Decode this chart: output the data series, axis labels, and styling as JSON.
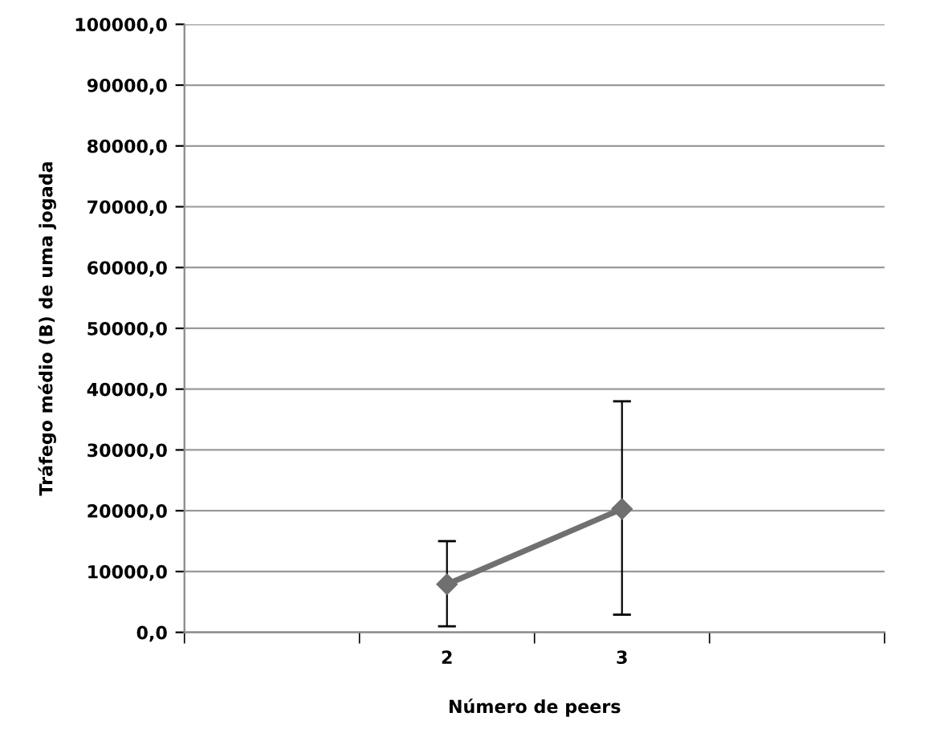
{
  "chart_data": {
    "type": "line",
    "xlabel": "Número de peers",
    "ylabel": "Tráfego médio (B) de uma jogada",
    "categories": [
      null,
      "2",
      "3",
      null
    ],
    "series": [
      {
        "color": "#707070",
        "values": [
          null,
          7900,
          20300,
          null
        ],
        "errors": [
          null,
          [
            1000,
            15000
          ],
          [
            2900,
            38000
          ],
          null
        ]
      }
    ],
    "ylim": [
      0,
      100000
    ],
    "yticks": [
      {
        "value": 0,
        "label": "0,0"
      },
      {
        "value": 10000,
        "label": "10000,0"
      },
      {
        "value": 20000,
        "label": "20000,0"
      },
      {
        "value": 30000,
        "label": "30000,0"
      },
      {
        "value": 40000,
        "label": "40000,0"
      },
      {
        "value": 50000,
        "label": "50000,0"
      },
      {
        "value": 60000,
        "label": "60000,0"
      },
      {
        "value": 70000,
        "label": "70000,0"
      },
      {
        "value": 80000,
        "label": "80000,0"
      },
      {
        "value": 90000,
        "label": "90000,0"
      },
      {
        "value": 100000,
        "label": "100000,0"
      }
    ],
    "grid": "y",
    "marker": "diamond",
    "line_style": "solid",
    "legend": false
  }
}
